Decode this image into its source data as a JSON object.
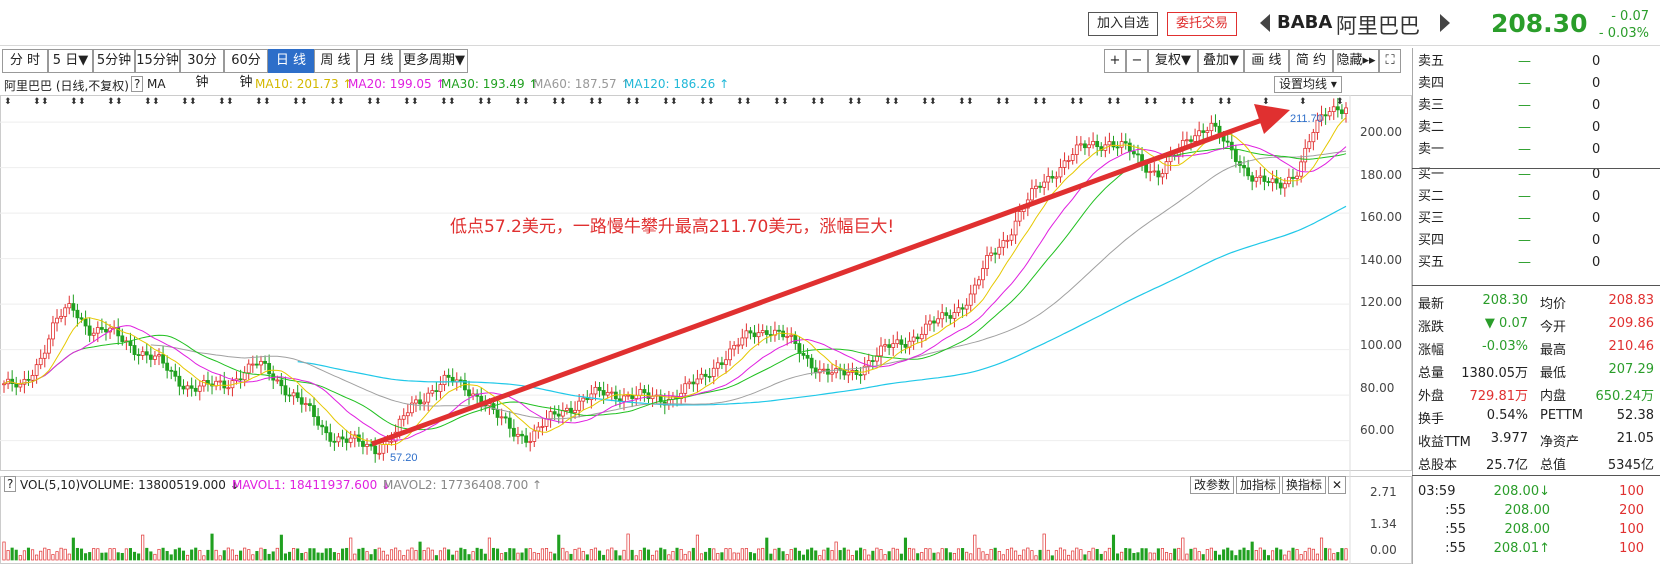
{
  "header": {
    "add_watch": "加入自选",
    "trade": "委托交易",
    "ticker": "BABA",
    "name": "阿里巴巴",
    "price": "208.30",
    "change": "- 0.07",
    "change_pct": "- 0.03%"
  },
  "periods": [
    "分 时",
    "5 日▼",
    "5分钟",
    "15分钟",
    "30分钟",
    "60分钟",
    "日 线",
    "周 线",
    "月 线",
    "更多周期▼"
  ],
  "active_period": "日 线",
  "tools": [
    "+",
    "−",
    "复权▼",
    "叠加▼",
    "画 线",
    "简 约",
    "隐藏▸▸",
    "⛶"
  ],
  "legend": {
    "title": "阿里巴巴 (日线,不复权)",
    "q": "?",
    "ma": "MA",
    "ma10": "MA10: 201.73 ↑",
    "ma20": "MA20: 199.05 ↑",
    "ma30": "MA30: 193.49 ↑",
    "ma60": "MA60: 187.57 ↑",
    "ma120": "MA120: 186.26 ↑",
    "set": "设置均线 ▾"
  },
  "colors": {
    "ma10": "#e6c800",
    "ma20": "#e020e0",
    "ma30": "#20c020",
    "ma60": "#a0a0a0",
    "ma120": "#20c8e8",
    "up": "#e03030",
    "down": "#20a020",
    "accent": "#2d6ec9"
  },
  "annotation": {
    "text": "低点57.2美元，一路慢牛攀升最高211.70美元，涨幅巨大!",
    "low": "57.20",
    "high": "211.70"
  },
  "y_axis": [
    "200.00",
    "180.00",
    "160.00",
    "140.00",
    "120.00",
    "100.00",
    "80.00",
    "60.00"
  ],
  "volume": {
    "q": "?",
    "label": "VOL(5,10)",
    "vol": "VOLUME: 13800519.000 ↓",
    "mavol1": "MAVOL1: 18411937.600 ↓",
    "mavol2": "MAVOL2: 17736408.700 ↑",
    "buttons": [
      "改参数",
      "加指标",
      "换指标",
      "✕"
    ],
    "y_axis": [
      "2.71",
      "1.34",
      "0.00"
    ]
  },
  "orderbook": {
    "sells": [
      [
        "卖五",
        "—",
        "0"
      ],
      [
        "卖四",
        "—",
        "0"
      ],
      [
        "卖三",
        "—",
        "0"
      ],
      [
        "卖二",
        "—",
        "0"
      ],
      [
        "卖一",
        "—",
        "0"
      ]
    ],
    "buys": [
      [
        "买一",
        "—",
        "0"
      ],
      [
        "买二",
        "—",
        "0"
      ],
      [
        "买三",
        "—",
        "0"
      ],
      [
        "买四",
        "—",
        "0"
      ],
      [
        "买五",
        "—",
        "0"
      ]
    ]
  },
  "stats": [
    [
      "最新",
      "208.30",
      "均价",
      "208.83"
    ],
    [
      "涨跌",
      "▼ 0.07",
      "今开",
      "209.86"
    ],
    [
      "涨幅",
      "-0.03%",
      "最高",
      "210.46"
    ],
    [
      "总量",
      "1380.05万",
      "最低",
      "207.29"
    ],
    [
      "外盘",
      "729.81万",
      "内盘",
      "650.24万"
    ],
    [
      "换手",
      "0.54%",
      "PETTM",
      "52.38"
    ],
    [
      "收益TTM",
      "3.977",
      "净资产",
      "21.05"
    ],
    [
      "总股本",
      "25.7亿",
      "总值",
      "5345亿"
    ]
  ],
  "ticks": [
    [
      "03:59",
      "208.00↓",
      "100"
    ],
    [
      ":55",
      "208.00",
      "200"
    ],
    [
      ":55",
      "208.00",
      "100"
    ],
    [
      ":55",
      "208.01↑",
      "100"
    ]
  ],
  "chart_data": {
    "type": "candlestick",
    "title": "阿里巴巴 (日线,不复权)",
    "ylim": [
      55,
      215
    ],
    "close_path": [
      85,
      82,
      95,
      112,
      118,
      110,
      108,
      104,
      100,
      95,
      88,
      84,
      83,
      85,
      90,
      93,
      88,
      80,
      72,
      64,
      60,
      58,
      57.2,
      62,
      75,
      82,
      86,
      84,
      80,
      70,
      64,
      62,
      68,
      74,
      78,
      80,
      81,
      80,
      78,
      79,
      82,
      86,
      95,
      100,
      107,
      110,
      105,
      98,
      92,
      88,
      90,
      96,
      100,
      104,
      108,
      112,
      118,
      124,
      140,
      150,
      162,
      172,
      180,
      186,
      190,
      192,
      188,
      182,
      178,
      185,
      195,
      200,
      188,
      180,
      175,
      170,
      178,
      195,
      204,
      208.3
    ]
  }
}
